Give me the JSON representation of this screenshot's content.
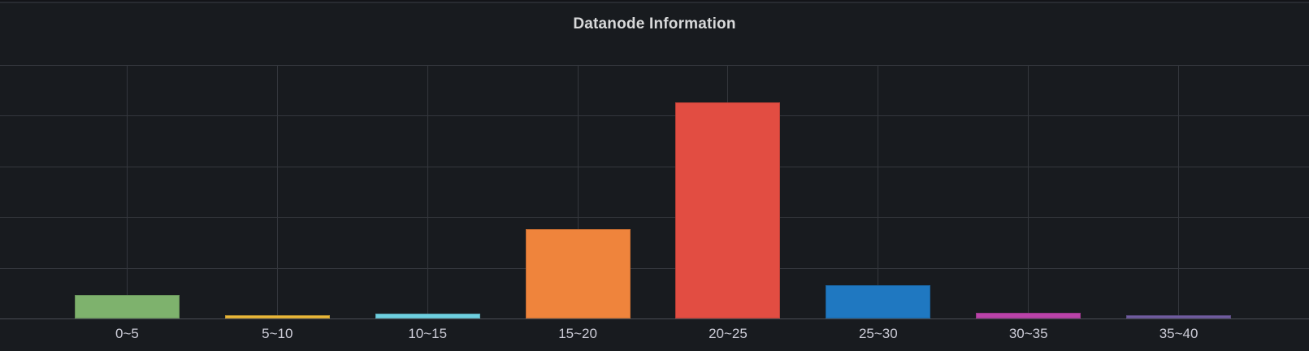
{
  "panel": {
    "title": "Datanode Information"
  },
  "chart_data": {
    "type": "bar",
    "title": "Datanode Information",
    "categories": [
      "0~5",
      "5~10",
      "10~15",
      "15~20",
      "20~25",
      "25~30",
      "30~35",
      "35~40"
    ],
    "values": [
      0.47,
      0.06,
      0.1,
      1.76,
      4.27,
      0.66,
      0.11,
      0.06
    ],
    "bar_colors": [
      "#7EB26D",
      "#EAB839",
      "#6ED0E0",
      "#EF843C",
      "#E24D42",
      "#1F78C1",
      "#BA43A9",
      "#705DA0"
    ],
    "xlabel": "",
    "ylabel": "",
    "ylim": [
      0,
      5
    ],
    "y_tick_labels_visible": false,
    "grid": true,
    "legend_position": "none"
  },
  "colors": {
    "panel_background": "#181b1f",
    "page_background": "#131418",
    "top_border": "#282b31",
    "grid_line": "#34373d",
    "axis_line": "#4a4d54",
    "title_text": "#d8d9da",
    "label_text": "#ccccd7"
  }
}
